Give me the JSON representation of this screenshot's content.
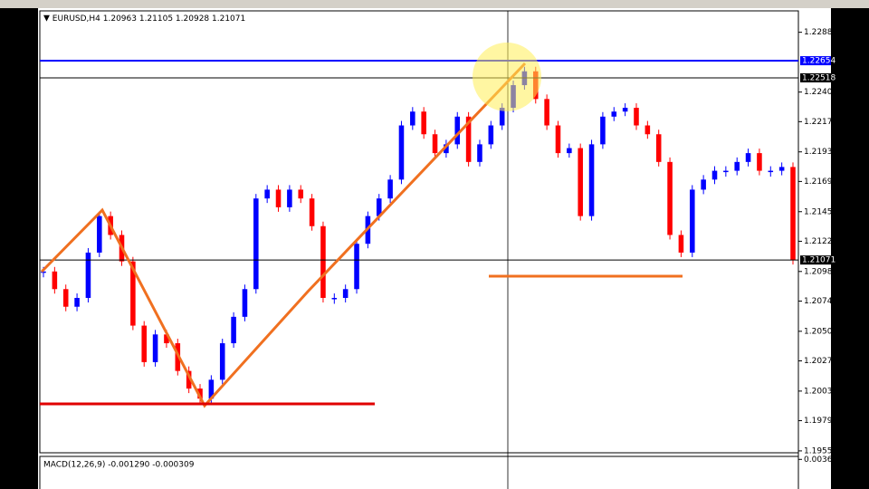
{
  "chart_data": [
    {
      "type": "candlestick",
      "title": "EURUSD,H4 1.20963 1.21105 1.20928 1.21071",
      "values": [
        1.2098,
        1.2084,
        1.207,
        1.2077,
        1.2113,
        1.2142,
        1.2127,
        1.2106,
        1.2055,
        1.2026,
        1.2048,
        1.2041,
        1.2019,
        1.2005,
        1.1997,
        1.2012,
        1.2041,
        1.2062,
        1.2084,
        1.2156,
        1.2163,
        1.2149,
        1.2163,
        1.2156,
        1.2134,
        1.2077,
        1.2077,
        1.2084,
        1.212,
        1.2142,
        1.2156,
        1.2171,
        1.2214,
        1.2225,
        1.2207,
        1.2192,
        1.2199,
        1.2221,
        1.2185,
        1.2199,
        1.2214,
        1.2228,
        1.2246,
        1.2257,
        1.2235,
        1.2214,
        1.2192,
        1.2196,
        1.2142,
        1.2199,
        1.2221,
        1.2225,
        1.2228,
        1.2214,
        1.2207,
        1.2185,
        1.2127,
        1.2113,
        1.2163,
        1.2171,
        1.2178,
        1.2178,
        1.2185,
        1.2192,
        1.2178,
        1.2178,
        1.2181,
        1.21071
      ],
      "up_color": "#0000ff",
      "down_color": "#ff0000",
      "ylim": [
        1.1954,
        1.2305
      ],
      "yticks": [
        {
          "value": 1.2288,
          "label": "1.22880"
        },
        1.22405,
        {
          "value": 1.2217,
          "label": "1.22170"
        },
        {
          "value": 1.2193,
          "label": "1.21930"
        },
        1.21695,
        1.21455,
        {
          "value": 1.2122,
          "label": "1.21220"
        },
        {
          "value": 1.2098,
          "label": "1.20980"
        },
        1.20745,
        1.20505,
        {
          "value": 1.2027,
          "label": "1.20270"
        },
        {
          "value": 1.2003,
          "label": "1.20030"
        },
        1.19795,
        1.19555
      ],
      "price_labels": [
        {
          "value": 1.22654,
          "color": "#0000ff"
        },
        {
          "value": 1.22518,
          "color": "#000000"
        },
        {
          "value": 1.21071,
          "color": "#000000"
        }
      ]
    },
    {
      "type": "macd",
      "title": "MACD(12,26,9) -0.001290 -0.000309",
      "ylim": [
        0.0005,
        0.004
      ],
      "yticks": [
        0.00368
      ]
    }
  ]
}
